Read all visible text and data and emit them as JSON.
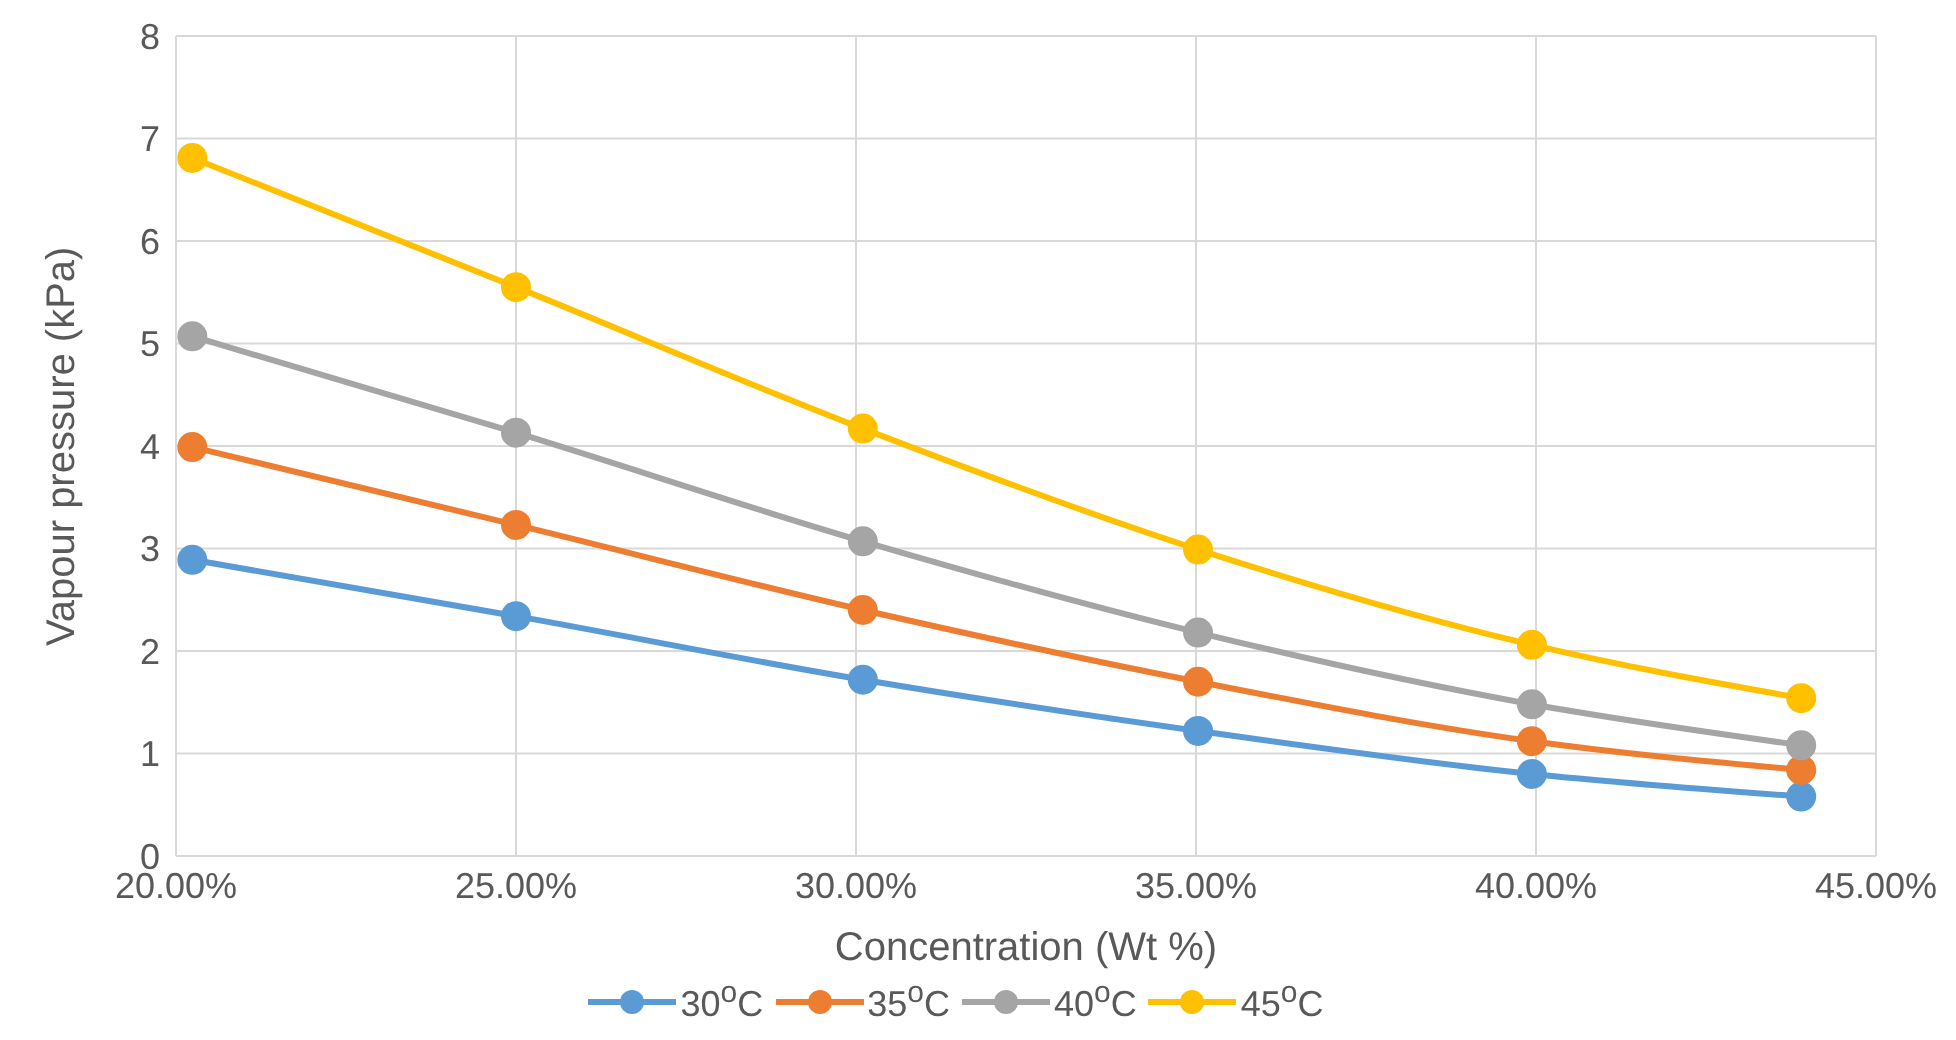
{
  "chart_data": {
    "type": "line",
    "xlabel": "Concentration (Wt %)",
    "ylabel": "Vapour pressure (kPa)",
    "x": [
      20.24,
      25.0,
      30.1,
      35.03,
      39.94,
      43.9
    ],
    "series": [
      {
        "name": "30$^{o}$C",
        "color": "#5b9bd5",
        "values": [
          2.89,
          2.34,
          1.72,
          1.22,
          0.8,
          0.58
        ]
      },
      {
        "name": "35$^{o}$C",
        "color": "#ed7d31",
        "values": [
          3.99,
          3.23,
          2.4,
          1.7,
          1.12,
          0.84
        ]
      },
      {
        "name": "40$^{o}$C",
        "color": "#a5a5a5",
        "values": [
          5.07,
          4.13,
          3.07,
          2.18,
          1.48,
          1.08
        ]
      },
      {
        "name": "45$^{o}$C",
        "color": "#ffc000",
        "values": [
          6.81,
          5.55,
          4.17,
          2.99,
          2.06,
          1.54
        ]
      }
    ],
    "xlim": [
      20,
      45
    ],
    "xticks": [
      {
        "value": 20,
        "label": "20.00%"
      },
      {
        "value": 25,
        "label": "25.00%"
      },
      {
        "value": 30,
        "label": "30.00%"
      },
      {
        "value": 35,
        "label": "35.00%"
      },
      {
        "value": 40,
        "label": "40.00%"
      },
      {
        "value": 45,
        "label": "45.00%"
      }
    ],
    "ylim": [
      0,
      8
    ],
    "yticks": [
      0,
      1,
      2,
      3,
      4,
      5,
      6,
      7,
      8
    ],
    "grid": true,
    "legend": "bottom",
    "marker": "circle",
    "line_style": "solid"
  }
}
